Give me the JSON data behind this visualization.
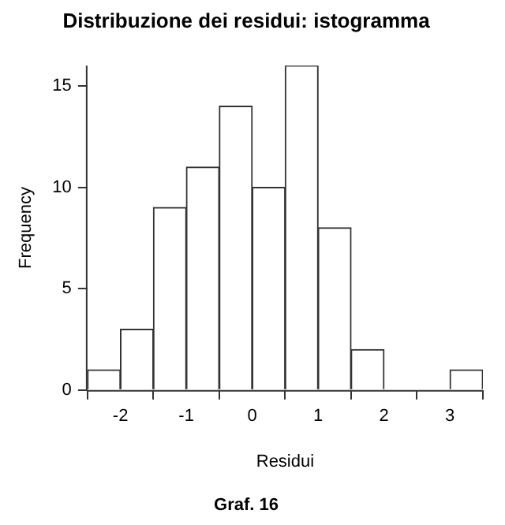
{
  "chart_data": {
    "type": "histogram",
    "title": "Distribuzione dei residui: istogramma",
    "xlabel": "Residui",
    "ylabel": "Frequency",
    "bins": [
      -2.5,
      -2,
      -1.5,
      -1,
      -0.5,
      0,
      0.5,
      1,
      1.5,
      2,
      2.5,
      3,
      3.5
    ],
    "values": [
      1,
      3,
      9,
      11,
      14,
      10,
      16,
      8,
      2,
      0,
      0,
      1
    ],
    "color": "#ffffff",
    "xlim": [
      -2.5,
      3.5
    ],
    "xticks": [
      -2,
      -1,
      0,
      1,
      2,
      3
    ],
    "ylim": [
      0,
      16
    ],
    "yticks": [
      0,
      5,
      10,
      15
    ],
    "grid": false,
    "legend": false,
    "annotations": [
      "Graf. 16"
    ]
  }
}
